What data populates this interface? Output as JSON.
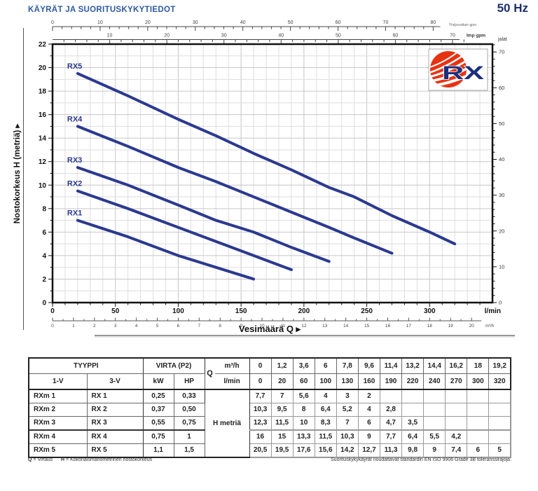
{
  "page": {
    "title": "KÄYRÄT JA SUORITUSKYKYTIEDOT",
    "frequency": "50 Hz"
  },
  "logo": {
    "text": "RX",
    "ball_color": "#e63312",
    "text_color": "#1b2f7e"
  },
  "chart_data": {
    "type": "line",
    "title": "",
    "xlabel": "Vesimäärä Q",
    "ylabel": "Nostokorkeus H (metriä)",
    "series_color": "#2b3990",
    "xlim_lmin": [
      0,
      350
    ],
    "ylim_m": [
      0,
      22
    ],
    "yticks_m": [
      0,
      2,
      4,
      6,
      8,
      10,
      12,
      14,
      16,
      18,
      20,
      22
    ],
    "xticks_lmin": [
      0,
      50,
      100,
      150,
      200,
      250,
      300
    ],
    "xminor_step_lmin": 10,
    "axis_units": {
      "bottom_primary": "l/min",
      "bottom_secondary": "m³/h",
      "top_primary": "Yhdysvaltain gpm",
      "top_secondary": "Imp gpm",
      "right": "jalat"
    },
    "m3h_ticks": [
      0,
      1,
      2,
      3,
      4,
      5,
      6,
      7,
      8,
      9,
      10,
      11,
      12,
      13,
      14,
      15,
      16,
      17,
      18,
      19,
      20
    ],
    "usgpm_ticks": [
      0,
      10,
      20,
      30,
      40,
      50,
      60,
      70,
      80
    ],
    "impgpm_ticks": [
      10,
      20,
      30,
      40,
      50,
      60,
      70
    ],
    "feet_ticks": [
      0,
      10,
      20,
      30,
      40,
      50,
      60,
      70
    ],
    "conversions": {
      "lmin_per_m3h": 16.6667,
      "lmin_per_usgpm": 3.7854,
      "lmin_per_impgpm": 4.5461,
      "m_per_foot": 0.3048
    },
    "grid": true,
    "series": [
      {
        "name": "RX1",
        "x_lmin": [
          20,
          60,
          100,
          130,
          160
        ],
        "y_m": [
          7,
          5.6,
          4,
          3,
          2
        ]
      },
      {
        "name": "RX2",
        "x_lmin": [
          20,
          60,
          100,
          130,
          160,
          190
        ],
        "y_m": [
          9.5,
          8,
          6.4,
          5.2,
          4,
          2.8
        ]
      },
      {
        "name": "RX3",
        "x_lmin": [
          20,
          60,
          100,
          130,
          160,
          190,
          220
        ],
        "y_m": [
          11.5,
          10,
          8.3,
          7,
          6,
          4.7,
          3.5
        ]
      },
      {
        "name": "RX4",
        "x_lmin": [
          20,
          60,
          100,
          130,
          160,
          190,
          220,
          240,
          270
        ],
        "y_m": [
          15,
          13.3,
          11.5,
          10.3,
          9,
          7.7,
          6.4,
          5.5,
          4.2
        ]
      },
      {
        "name": "RX5",
        "x_lmin": [
          20,
          60,
          100,
          130,
          160,
          190,
          220,
          240,
          270,
          300,
          320
        ],
        "y_m": [
          19.5,
          17.6,
          15.6,
          14.2,
          12.7,
          11.3,
          9.8,
          9,
          7.4,
          6,
          5
        ]
      }
    ]
  },
  "table": {
    "header": {
      "tyyppi": "TYYPPI",
      "col_1v": "1-V",
      "col_3v": "3-V",
      "virta": "VIRTA (P2)",
      "kw": "kW",
      "hp": "HP",
      "q": "Q",
      "m3h": "m³/h",
      "lmin": "l/min",
      "h_metria": "H metriä",
      "m3h_values": [
        "0",
        "1,2",
        "3,6",
        "6",
        "7,8",
        "9,6",
        "11,4",
        "13,2",
        "14,4",
        "16,2",
        "18",
        "19,2"
      ],
      "lmin_values": [
        "0",
        "20",
        "60",
        "100",
        "130",
        "160",
        "190",
        "220",
        "240",
        "270",
        "300",
        "320"
      ]
    },
    "rows": [
      {
        "model_1v": "RXm 1",
        "model_3v": "RX 1",
        "kw": "0,25",
        "hp": "0,33",
        "h": [
          "7,7",
          "7",
          "5,6",
          "4",
          "3",
          "2",
          "",
          "",
          "",
          "",
          "",
          ""
        ]
      },
      {
        "model_1v": "RXm 2",
        "model_3v": "RX 2",
        "kw": "0,37",
        "hp": "0,50",
        "h": [
          "10,3",
          "9,5",
          "8",
          "6,4",
          "5,2",
          "4",
          "2,8",
          "",
          "",
          "",
          "",
          ""
        ]
      },
      {
        "model_1v": "RXm 3",
        "model_3v": "RX 3",
        "kw": "0,55",
        "hp": "0,75",
        "h": [
          "12,3",
          "11,5",
          "10",
          "8,3",
          "7",
          "6",
          "4,7",
          "3,5",
          "",
          "",
          "",
          ""
        ]
      },
      {
        "model_1v": "RXm 4",
        "model_3v": "RX 4",
        "kw": "0,75",
        "hp": "1",
        "h": [
          "16",
          "15",
          "13,3",
          "11,5",
          "10,3",
          "9",
          "7,7",
          "6,4",
          "5,5",
          "4,2",
          "",
          ""
        ]
      },
      {
        "model_1v": "RXm 5",
        "model_3v": "RX 5",
        "kw": "1,1",
        "hp": "1,5",
        "h": [
          "20,5",
          "19,5",
          "17,6",
          "15,6",
          "14,2",
          "12,7",
          "11,3",
          "9,8",
          "9",
          "7,4",
          "6",
          "5"
        ]
      }
    ]
  },
  "footer": {
    "q_symbol": "Q",
    "q_text": "= Virtaus",
    "h_symbol": "H",
    "h_text": "= Kokonaismanometrinen nostokorkeus",
    "right": "Suorituskykykäyrät noudattavat standardin EN ISO 9906 Grade 3B toleranssirajoja."
  }
}
